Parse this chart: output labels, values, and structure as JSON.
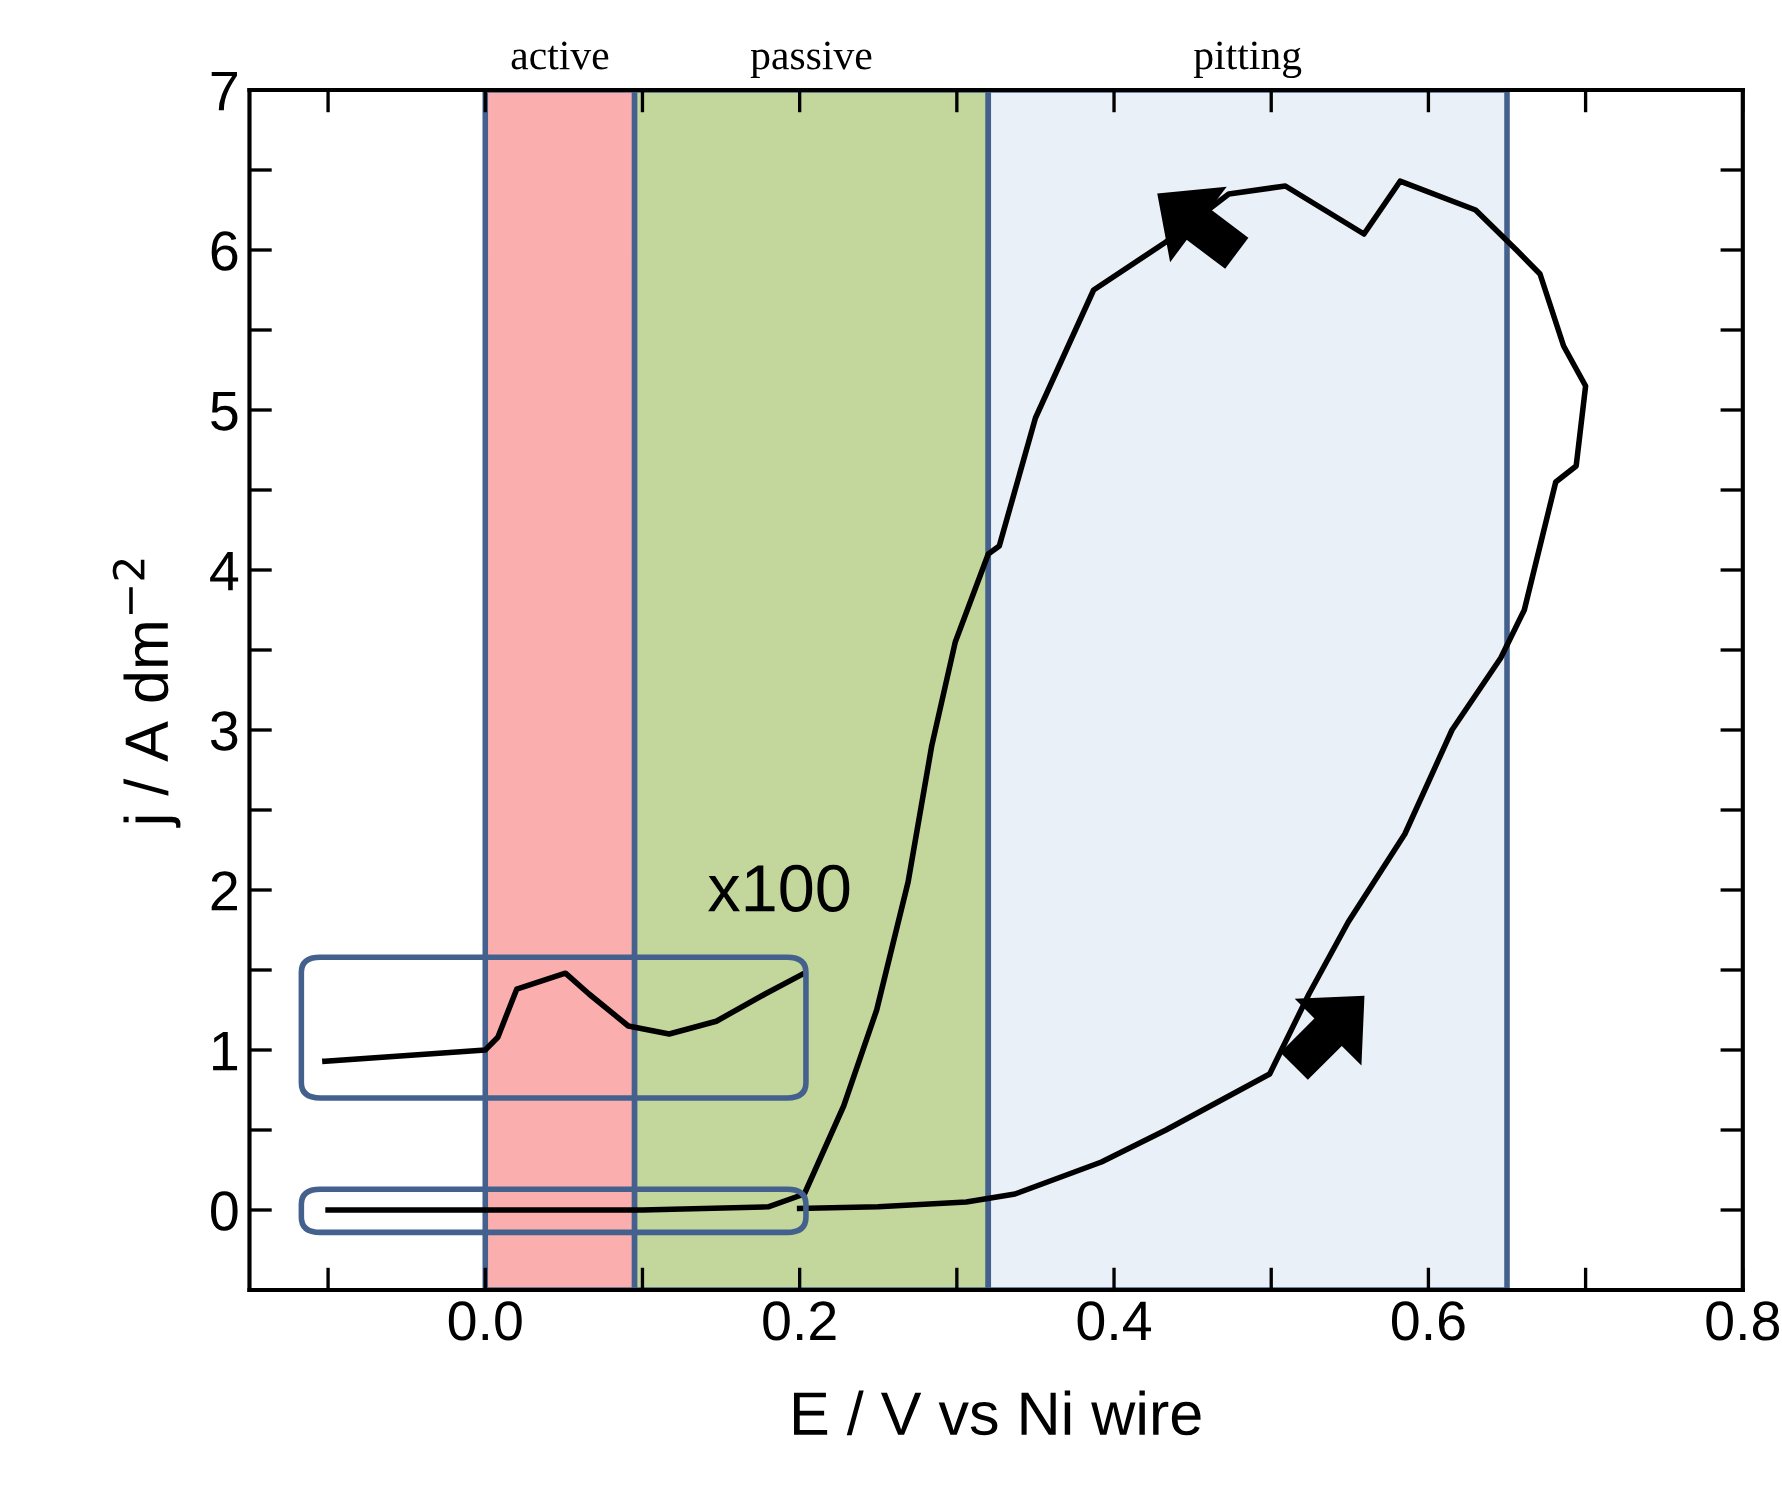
{
  "chart_data": {
    "type": "line",
    "xlabel": "E / V vs Ni wire",
    "ylabel": "j / A dm$^{−2}$",
    "xlim": [
      -0.15,
      0.8
    ],
    "ylim": [
      -0.5,
      7
    ],
    "xticks": [
      {
        "value": -0.1,
        "label": null
      },
      {
        "value": 0.0,
        "label": "0.0"
      },
      {
        "value": 0.1,
        "label": null
      },
      {
        "value": 0.2,
        "label": "0.2"
      },
      {
        "value": 0.3,
        "label": null
      },
      {
        "value": 0.4,
        "label": "0.4"
      },
      {
        "value": 0.5,
        "label": null
      },
      {
        "value": 0.6,
        "label": "0.6"
      },
      {
        "value": 0.7,
        "label": null
      },
      {
        "value": 0.8,
        "label": "0.8"
      }
    ],
    "yticks": [
      0,
      {
        "value": 0.5,
        "label": null
      },
      1,
      {
        "value": 1.5,
        "label": null
      },
      2,
      {
        "value": 2.5,
        "label": null
      },
      3,
      {
        "value": 3.5,
        "label": null
      },
      4,
      {
        "value": 4.5,
        "label": null
      },
      5,
      {
        "value": 5.5,
        "label": null
      },
      6,
      {
        "value": 6.5,
        "label": null
      },
      7
    ],
    "grid": false,
    "legend": false,
    "marker": "none",
    "line_style": "solid",
    "bands": [
      {
        "axis": "x",
        "from": 0.0,
        "to": 0.095,
        "label": "active",
        "color": "#fbaeae"
      },
      {
        "axis": "x",
        "from": 0.095,
        "to": 0.32,
        "label": "passive",
        "color": "#c3d69b"
      },
      {
        "axis": "x",
        "from": 0.32,
        "to": 0.65,
        "label": "pitting",
        "color": "#eaf0f8"
      }
    ],
    "series": [
      {
        "color": "#000000",
        "x": [
          -0.1,
          0.0,
          0.1,
          0.18,
          0.203,
          0.228,
          0.249,
          0.269,
          0.284,
          0.299,
          0.32,
          0.327,
          0.35,
          0.387,
          0.433,
          0.473,
          0.509,
          0.559,
          0.582,
          0.63,
          0.656,
          0.671,
          0.686,
          0.7,
          0.694,
          0.681,
          0.661,
          0.646,
          0.615,
          0.585,
          0.549,
          0.524,
          0.499,
          0.433,
          0.392,
          0.337,
          0.306,
          0.25,
          0.2
        ],
        "values": [
          0,
          0,
          0,
          0.02,
          0.1,
          0.65,
          1.25,
          2.05,
          2.9,
          3.55,
          4.1,
          4.15,
          4.95,
          5.75,
          6.05,
          6.35,
          6.4,
          6.1,
          6.43,
          6.25,
          6.0,
          5.85,
          5.4,
          5.15,
          4.65,
          4.55,
          3.75,
          3.45,
          3.0,
          2.35,
          1.8,
          1.35,
          0.85,
          0.5,
          0.3,
          0.1,
          0.05,
          0.02,
          0.01
        ]
      },
      {
        "color": "#000000",
        "x": [
          -0.102,
          0.0,
          0.008,
          0.02,
          0.051,
          0.066,
          0.091,
          0.117,
          0.147,
          0.178,
          0.203
        ],
        "values": [
          0.93,
          1.0,
          1.08,
          1.38,
          1.48,
          1.35,
          1.15,
          1.1,
          1.18,
          1.35,
          1.48
        ]
      }
    ],
    "annotations": [
      "x100"
    ]
  }
}
